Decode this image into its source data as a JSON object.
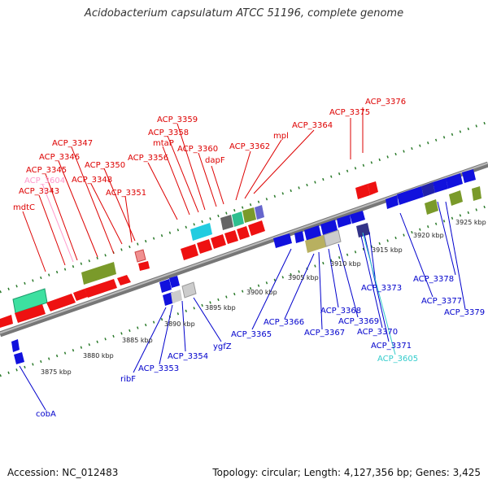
{
  "title": "Acidobacterium capsulatum ATCC 51196, complete genome",
  "accession": "Accession: NC_012483",
  "summary": "Topology: circular; Length: 4,127,356 bp; Genes: 3,425",
  "colors": {
    "forward_label": "#dd0000",
    "reverse_label": "#0000cc",
    "pseudo_label": "#ff99cc",
    "rna_label": "#33cccc",
    "backbone": "#888888",
    "tick": "#2a7a2a"
  },
  "scale_ticks": [
    "3875 kbp",
    "3880 kbp",
    "3885 kbp",
    "3890 kbp",
    "3895 kbp",
    "3900 kbp",
    "3905 kbp",
    "3910 kbp",
    "3915 kbp",
    "3920 kbp",
    "3925 kbp"
  ],
  "forward_labels": [
    "ACP_3376",
    "ACP_3375",
    "ACP_3364",
    "mpl",
    "ACP_3362",
    "ACP_3360",
    "dapF",
    "ACP_3359",
    "ACP_3358",
    "mtaP",
    "ACP_3356",
    "ACP_3350",
    "ACP_3348",
    "ACP_3351",
    "ACP_3347",
    "ACP_3346",
    "ACP_3345",
    "ACP_3343",
    "mdtC"
  ],
  "pseudo_labels": [
    "ACP_3604"
  ],
  "reverse_labels": [
    "cobA",
    "ribF",
    "ACP_3353",
    "ACP_3354",
    "ygfZ",
    "ACP_3365",
    "ACP_3366",
    "ACP_3367",
    "ACP_3368",
    "ACP_3369",
    "ACP_3370",
    "ACP_3371",
    "ACP_3373",
    "ACP_3377",
    "ACP_3378",
    "ACP_3379"
  ],
  "rna_labels": [
    "ACP_3605"
  ]
}
